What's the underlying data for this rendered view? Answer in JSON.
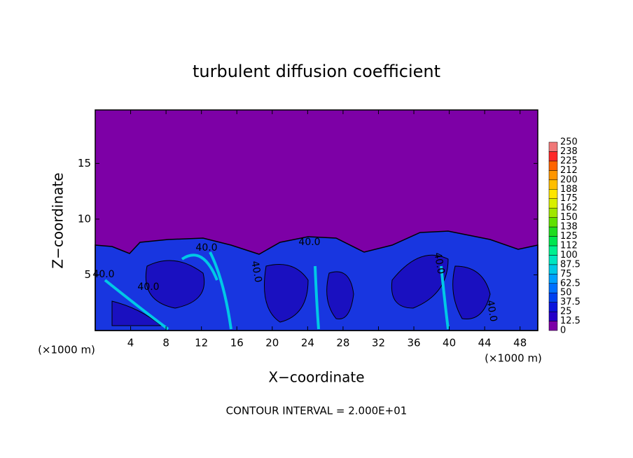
{
  "chart_data": {
    "type": "contour",
    "title": "turbulent diffusion coefficient",
    "xlabel": "X−coordinate",
    "ylabel": "Z−coordinate",
    "x_unit": "(×1000 m)",
    "y_unit": "(×1000 m)",
    "note": "CONTOUR INTERVAL = 2.000E+01",
    "xlim": [
      0,
      50
    ],
    "ylim": [
      0,
      19.8
    ],
    "xticks": [
      4,
      8,
      12,
      16,
      20,
      24,
      28,
      32,
      36,
      40,
      44,
      48
    ],
    "yticks": [
      5,
      10,
      15
    ],
    "contour_labels": [
      "40.0",
      "40.0",
      "40.0",
      "40.0",
      "40.0",
      "40.0",
      "40.0"
    ],
    "colorbar": {
      "levels": [
        0,
        12.5,
        25,
        37.5,
        50,
        62.5,
        75,
        87.5,
        100,
        112,
        125,
        138,
        150,
        162,
        175,
        188,
        200,
        212,
        225,
        238,
        250
      ],
      "colors": [
        "#7d00a6",
        "#2600c8",
        "#0a14dc",
        "#0040f0",
        "#0070ff",
        "#00a0ff",
        "#00c8e6",
        "#00e6c0",
        "#00f090",
        "#00e650",
        "#20dc20",
        "#60e000",
        "#a0e600",
        "#d8f000",
        "#ffe600",
        "#ffbe00",
        "#ff9600",
        "#ff6400",
        "#ff2828",
        "#f07878"
      ]
    }
  }
}
